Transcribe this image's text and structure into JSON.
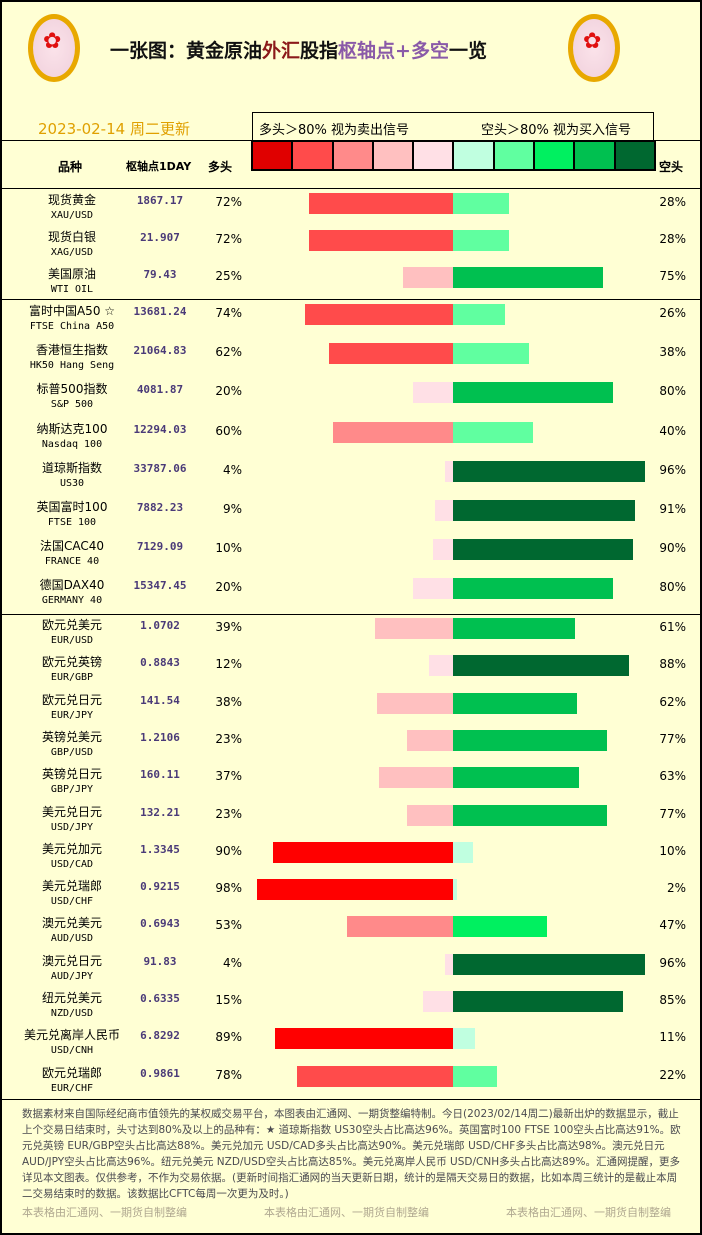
{
  "header": {
    "title_parts": [
      "一张图：黄金原油",
      "外汇",
      "股指",
      "枢轴点+多空",
      "一览"
    ],
    "date": "2023-02-14 周二更新",
    "legend_long": "多头＞80% 视为卖出信号",
    "legend_short": "空头＞80% 视为买入信号",
    "col_name": "品种",
    "col_pivot": "枢轴点1DAY",
    "col_long": "多头",
    "col_short": "空头"
  },
  "scale_colors": [
    "#e00000",
    "#ff4b4b",
    "#ff8a8a",
    "#ffc0c0",
    "#ffe0e6",
    "#c0ffe0",
    "#60ffa0",
    "#00f060",
    "#00c050",
    "#006830"
  ],
  "chart_data": {
    "type": "bar",
    "orientation": "diverging-horizontal",
    "unit": "%",
    "rows": [
      {
        "cn": "现货黄金",
        "en": "XAU/USD",
        "pivot": "1867.17",
        "long": 72,
        "short": 28
      },
      {
        "cn": "现货白银",
        "en": "XAG/USD",
        "pivot": "21.907",
        "long": 72,
        "short": 28
      },
      {
        "cn": "美国原油",
        "en": "WTI OIL",
        "pivot": "79.43",
        "long": 25,
        "short": 75
      },
      {
        "cn": "富时中国A50 ☆",
        "en": "FTSE China A50",
        "pivot": "13681.24",
        "long": 74,
        "short": 26
      },
      {
        "cn": "香港恒生指数",
        "en": "HK50 Hang Seng",
        "pivot": "21064.83",
        "long": 62,
        "short": 38
      },
      {
        "cn": "标普500指数",
        "en": "S&P 500",
        "pivot": "4081.87",
        "long": 20,
        "short": 80
      },
      {
        "cn": "纳斯达克100",
        "en": "Nasdaq 100",
        "pivot": "12294.03",
        "long": 60,
        "short": 40
      },
      {
        "cn": "道琼斯指数",
        "en": "US30",
        "pivot": "33787.06",
        "long": 4,
        "short": 96
      },
      {
        "cn": "英国富时100",
        "en": "FTSE 100",
        "pivot": "7882.23",
        "long": 9,
        "short": 91
      },
      {
        "cn": "法国CAC40",
        "en": "FRANCE 40",
        "pivot": "7129.09",
        "long": 10,
        "short": 90
      },
      {
        "cn": "德国DAX40",
        "en": "GERMANY 40",
        "pivot": "15347.45",
        "long": 20,
        "short": 80
      },
      {
        "cn": "欧元兑美元",
        "en": "EUR/USD",
        "pivot": "1.0702",
        "long": 39,
        "short": 61
      },
      {
        "cn": "欧元兑英镑",
        "en": "EUR/GBP",
        "pivot": "0.8843",
        "long": 12,
        "short": 88
      },
      {
        "cn": "欧元兑日元",
        "en": "EUR/JPY",
        "pivot": "141.54",
        "long": 38,
        "short": 62
      },
      {
        "cn": "英镑兑美元",
        "en": "GBP/USD",
        "pivot": "1.2106",
        "long": 23,
        "short": 77
      },
      {
        "cn": "英镑兑日元",
        "en": "GBP/JPY",
        "pivot": "160.11",
        "long": 37,
        "short": 63
      },
      {
        "cn": "美元兑日元",
        "en": "USD/JPY",
        "pivot": "132.21",
        "long": 23,
        "short": 77
      },
      {
        "cn": "美元兑加元",
        "en": "USD/CAD",
        "pivot": "1.3345",
        "long": 90,
        "short": 10
      },
      {
        "cn": "美元兑瑞郎",
        "en": "USD/CHF",
        "pivot": "0.9215",
        "long": 98,
        "short": 2
      },
      {
        "cn": "澳元兑美元",
        "en": "AUD/USD",
        "pivot": "0.6943",
        "long": 53,
        "short": 47
      },
      {
        "cn": "澳元兑日元",
        "en": "AUD/JPY",
        "pivot": "91.83",
        "long": 4,
        "short": 96
      },
      {
        "cn": "纽元兑美元",
        "en": "NZD/USD",
        "pivot": "0.6335",
        "long": 15,
        "short": 85
      },
      {
        "cn": "美元兑离岸人民币",
        "en": "USD/CNH",
        "pivot": "6.8292",
        "long": 89,
        "short": 11
      },
      {
        "cn": "欧元兑瑞郎",
        "en": "EUR/CHF",
        "pivot": "0.9861",
        "long": 78,
        "short": 22
      }
    ]
  },
  "footer": {
    "note": "数据素材来自国际经纪商市值领先的某权威交易平台，本图表由汇通网、一期货整编特制。今日(2023/02/14周二)最新出炉的数据显示，截止上个交易日结束时，头寸达到80%及以上的品种有：★ 道琼斯指数 US30空头占比高达96%。英国富时100 FTSE 100空头占比高达91%。欧元兑英镑 EUR/GBP空头占比高达88%。美元兑加元 USD/CAD多头占比高达90%。美元兑瑞郎 USD/CHF多头占比高达98%。澳元兑日元 AUD/JPY空头占比高达96%。纽元兑美元 NZD/USD空头占比高达85%。美元兑离岸人民币 USD/CNH多头占比高达89%。汇通网提醒，更多详见本文图表。仅供参考，不作为交易依据。(更新时间指汇通网的当天更新日期，统计的是隔天交易日的数据，比如本周三统计的是截止本周二交易结束时的数据。该数据比CFTC每周一次更为及时。)",
    "watermark": "本表格由汇通网、一期货自制整编"
  }
}
